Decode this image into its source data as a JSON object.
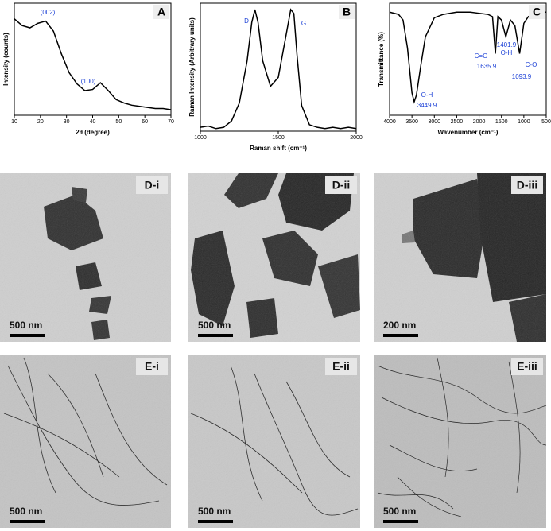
{
  "chart_data": [
    {
      "type": "line",
      "panel": "A",
      "xlabel": "2θ (degree)",
      "ylabel": "Intensity (counts)",
      "x": [
        10,
        13,
        16,
        19,
        22,
        25,
        28,
        31,
        34,
        37,
        40,
        43,
        46,
        49,
        52,
        55,
        58,
        61,
        64,
        67,
        70
      ],
      "values": [
        86,
        80,
        78,
        82,
        84,
        75,
        55,
        38,
        28,
        22,
        23,
        29,
        22,
        14,
        11,
        9,
        8,
        7,
        6,
        6,
        5
      ],
      "color": "#000000",
      "xlim": [
        10,
        70
      ],
      "xticks": [
        10,
        20,
        30,
        40,
        50,
        60,
        70
      ],
      "ylim": [
        0,
        100
      ],
      "annotations": [
        "(002)",
        "(100)"
      ]
    },
    {
      "type": "line",
      "panel": "B",
      "xlabel": "Raman shift (cm⁻¹)",
      "ylabel": "Raman Intensity (Arbitrary units)",
      "x": [
        1000,
        1050,
        1100,
        1150,
        1200,
        1250,
        1300,
        1330,
        1350,
        1370,
        1400,
        1450,
        1500,
        1550,
        1580,
        1600,
        1620,
        1650,
        1700,
        1750,
        1800,
        1850,
        1900,
        1950,
        2000
      ],
      "values": [
        3,
        4,
        2,
        3,
        8,
        22,
        55,
        85,
        95,
        85,
        55,
        35,
        42,
        75,
        95,
        92,
        60,
        20,
        5,
        3,
        2,
        3,
        2,
        3,
        2
      ],
      "color": "#000000",
      "xlim": [
        1000,
        2000
      ],
      "xticks": [
        1000,
        1500,
        2000
      ],
      "ylim": [
        0,
        100
      ],
      "annotations": [
        "D",
        "G"
      ]
    },
    {
      "type": "line",
      "panel": "C",
      "xlabel": "Wavenumber (cm⁻¹)",
      "ylabel": "Transmittance (%)",
      "x": [
        4000,
        3800,
        3700,
        3600,
        3500,
        3450,
        3400,
        3300,
        3200,
        3000,
        2800,
        2500,
        2200,
        2000,
        1800,
        1700,
        1636,
        1580,
        1500,
        1402,
        1300,
        1200,
        1094,
        1000,
        900,
        800,
        700,
        600,
        500
      ],
      "values": [
        92,
        90,
        85,
        60,
        20,
        12,
        18,
        45,
        70,
        87,
        90,
        92,
        92,
        91,
        90,
        88,
        55,
        88,
        85,
        70,
        85,
        80,
        55,
        82,
        88,
        90,
        91,
        92,
        92
      ],
      "color": "#000000",
      "xlim": [
        4000,
        500
      ],
      "xticks": [
        4000,
        3500,
        3000,
        2500,
        2000,
        1500,
        1000,
        500
      ],
      "ylim": [
        0,
        100
      ],
      "annotations": [
        "O-H",
        "3449.9",
        "C=O",
        "1635.9",
        "1401.9",
        "O-H",
        "C-O",
        "1093.9"
      ]
    }
  ],
  "images": [
    {
      "label": "D-i",
      "scale_bar": "500 nm"
    },
    {
      "label": "D-ii",
      "scale_bar": "500 nm"
    },
    {
      "label": "D-iii",
      "scale_bar": "200 nm"
    },
    {
      "label": "E-i",
      "scale_bar": "500 nm"
    },
    {
      "label": "E-ii",
      "scale_bar": "500 nm"
    },
    {
      "label": "E-iii",
      "scale_bar": "500 nm"
    }
  ]
}
